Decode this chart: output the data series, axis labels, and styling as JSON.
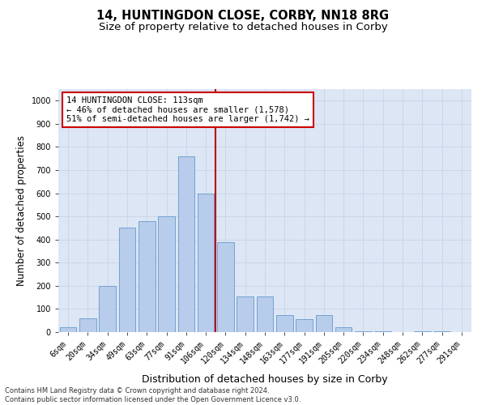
{
  "title": "14, HUNTINGDON CLOSE, CORBY, NN18 8RG",
  "subtitle": "Size of property relative to detached houses in Corby",
  "xlabel": "Distribution of detached houses by size in Corby",
  "ylabel": "Number of detached properties",
  "categories": [
    "6sqm",
    "20sqm",
    "34sqm",
    "49sqm",
    "63sqm",
    "77sqm",
    "91sqm",
    "106sqm",
    "120sqm",
    "134sqm",
    "148sqm",
    "163sqm",
    "177sqm",
    "191sqm",
    "205sqm",
    "220sqm",
    "234sqm",
    "248sqm",
    "262sqm",
    "277sqm",
    "291sqm"
  ],
  "values": [
    20,
    60,
    200,
    450,
    480,
    500,
    760,
    600,
    390,
    155,
    155,
    75,
    55,
    75,
    20,
    5,
    5,
    0,
    5,
    5,
    0
  ],
  "bar_color": "#b8cceb",
  "bar_edgecolor": "#6699cc",
  "vline_index": 7,
  "vline_color": "#bb0000",
  "annotation_text": "14 HUNTINGDON CLOSE: 113sqm\n← 46% of detached houses are smaller (1,578)\n51% of semi-detached houses are larger (1,742) →",
  "annotation_box_facecolor": "#ffffff",
  "annotation_box_edgecolor": "#cc0000",
  "ylim": [
    0,
    1050
  ],
  "yticks": [
    0,
    100,
    200,
    300,
    400,
    500,
    600,
    700,
    800,
    900,
    1000
  ],
  "grid_color": "#cdd6e8",
  "background_color": "#dce6f5",
  "footer_line1": "Contains HM Land Registry data © Crown copyright and database right 2024.",
  "footer_line2": "Contains public sector information licensed under the Open Government Licence v3.0.",
  "title_fontsize": 10.5,
  "subtitle_fontsize": 9.5,
  "tick_fontsize": 7,
  "ylabel_fontsize": 8.5,
  "xlabel_fontsize": 9,
  "footer_fontsize": 6,
  "annot_fontsize": 7.5
}
